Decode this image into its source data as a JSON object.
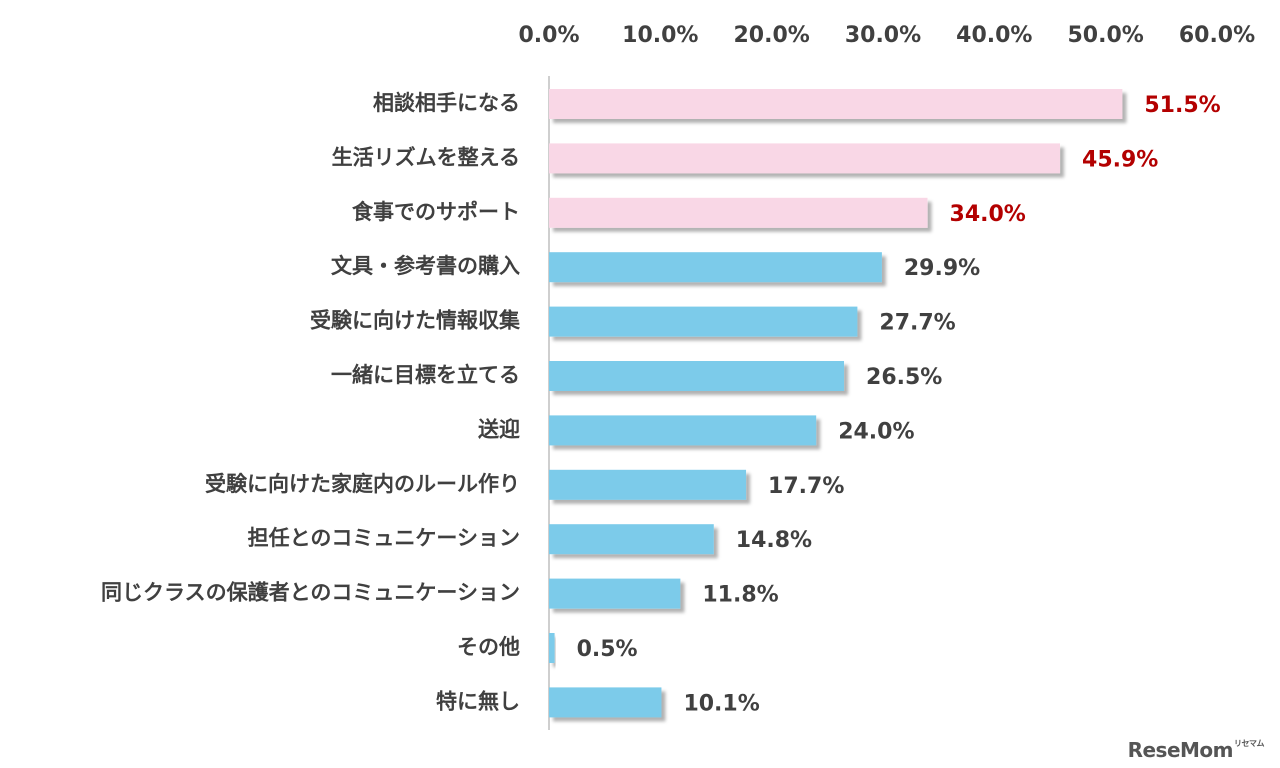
{
  "chart_data": {
    "type": "bar",
    "orientation": "horizontal",
    "categories": [
      "相談相手になる",
      "生活リズムを整える",
      "食事でのサポート",
      "文具・参考書の購入",
      "受験に向けた情報収集",
      "一緒に目標を立てる",
      "送迎",
      "受験に向けた家庭内のルール作り",
      "担任とのコミュニケーション",
      "同じクラスの保護者とのコミュニケーション",
      "その他",
      "特に無し"
    ],
    "values": [
      51.5,
      45.9,
      34.0,
      29.9,
      27.7,
      26.5,
      24.0,
      17.7,
      14.8,
      11.8,
      0.5,
      10.1
    ],
    "value_labels": [
      "51.5%",
      "45.9%",
      "34.0%",
      "29.9%",
      "27.7%",
      "26.5%",
      "24.0%",
      "17.7%",
      "14.8%",
      "11.8%",
      "0.5%",
      "10.1%"
    ],
    "highlight_count": 3,
    "xlim": [
      0,
      60
    ],
    "x_ticks": [
      0,
      10,
      20,
      30,
      40,
      50,
      60
    ],
    "x_tick_labels": [
      "0.0%",
      "10.0%",
      "20.0%",
      "30.0%",
      "40.0%",
      "50.0%",
      "60.0%"
    ],
    "axis_position": "top",
    "grid": false,
    "title": "",
    "xlabel": "",
    "ylabel": ""
  },
  "colors": {
    "highlight_bar": "#f9d7e6",
    "normal_bar": "#7ccbea",
    "highlight_label": "#b30000",
    "normal_label": "#404040",
    "axis": "#bfbfbf"
  },
  "logo": {
    "text": "ReseMom",
    "mark": "リセマム"
  }
}
